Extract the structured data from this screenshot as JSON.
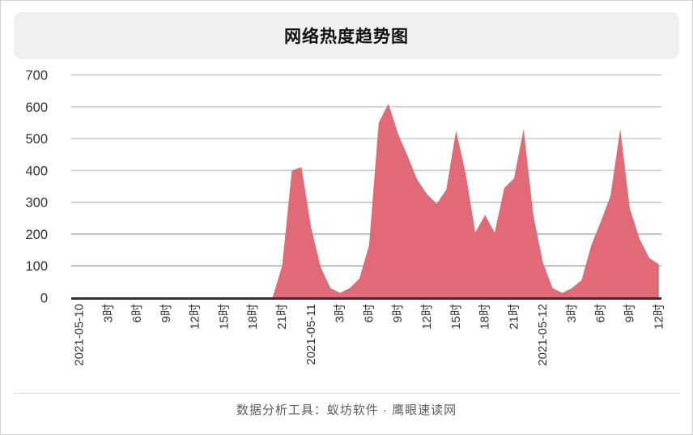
{
  "page": {
    "title": "网络热度趋势图",
    "footer": "数据分析工具：蚁坊软件 · 鹰眼速读网"
  },
  "chart_data": {
    "type": "area",
    "title": "网络热度趋势图",
    "x_start": "2021-05-10 0时",
    "x_end": "2021-05-12 12时",
    "x_step_hours": 1,
    "xtick_every_hours": 3,
    "xtick_labels": [
      "2021-05-10",
      "3时",
      "6时",
      "9时",
      "12时",
      "15时",
      "18时",
      "21时",
      "2021-05-11",
      "3时",
      "6时",
      "9时",
      "12时",
      "15时",
      "18时",
      "21时",
      "2021-05-12",
      "3时",
      "6时",
      "9时",
      "12时"
    ],
    "ylim": [
      0,
      700
    ],
    "yticks": [
      0,
      100,
      200,
      300,
      400,
      500,
      600,
      700
    ],
    "grid": true,
    "legend": false,
    "series": [
      {
        "values": [
          0,
          0,
          0,
          0,
          0,
          0,
          0,
          0,
          0,
          0,
          0,
          0,
          0,
          0,
          0,
          0,
          0,
          0,
          0,
          0,
          0,
          100,
          400,
          410,
          220,
          95,
          30,
          15,
          30,
          60,
          165,
          550,
          610,
          515,
          445,
          370,
          325,
          295,
          340,
          525,
          390,
          205,
          260,
          205,
          345,
          375,
          530,
          260,
          110,
          30,
          15,
          30,
          55,
          165,
          240,
          320,
          530,
          280,
          185,
          125,
          105
        ]
      }
    ],
    "colors": {
      "area_fill": "#e06a75",
      "axis_line": "#333333",
      "grid_line": "#c7c7c7",
      "grid_line_dark": "#a3a3a3",
      "label_text": "#333333",
      "header_bg": "#f0f0f0",
      "footer_text": "#5e5e5e"
    }
  }
}
